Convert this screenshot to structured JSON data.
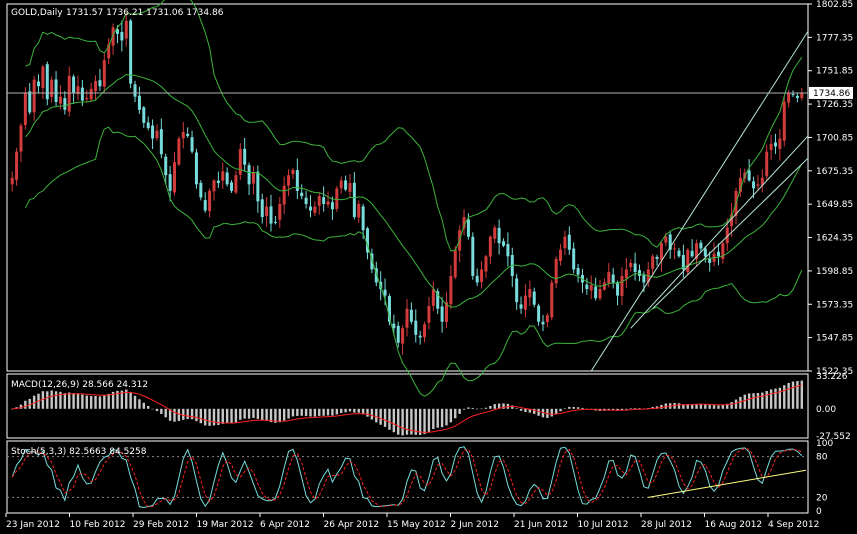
{
  "window": {
    "symbol_title": "GOLD,Daily",
    "ohlc_readout": "1731.57 1736.21 1731.06 1734.86"
  },
  "indicators": {
    "macd_label": "MACD(12,26,9) 28.566 24.312",
    "stoch_label": "Stoch(5,3,3) 82.5663 84.5258"
  },
  "colors": {
    "background": "#000000",
    "frame": "#ffffff",
    "bull_candle": "#d23c3c",
    "bear_candle": "#78dcdc",
    "bollinger": "#3cb43c",
    "trendline": "#b8e6d8",
    "macd_hist": "#c8c8c8",
    "macd_signal": "#ff2020",
    "stoch_main": "#78dcdc",
    "stoch_signal": "#ff2020",
    "stoch_trend": "#ffff80",
    "price_box": "#ffffff"
  },
  "chart_data": [
    {
      "type": "candlestick",
      "title": "GOLD,Daily",
      "y_ticks": [
        "1802.85",
        "1777.35",
        "1751.85",
        "1726.35",
        "1700.85",
        "1675.35",
        "1649.85",
        "1624.35",
        "1598.85",
        "1573.35",
        "1547.85",
        "1522.35"
      ],
      "ylim": [
        1522.35,
        1802.85
      ],
      "x_ticks": [
        "23 Jan 2012",
        "10 Feb 2012",
        "29 Feb 2012",
        "19 Mar 2012",
        "6 Apr 2012",
        "26 Apr 2012",
        "15 May 2012",
        "2 Jun 2012",
        "21 Jun 2012",
        "10 Jul 2012",
        "28 Jul 2012",
        "16 Aug 2012",
        "4 Sep 2012"
      ],
      "current_price": "1734.86",
      "close_series": [
        1670,
        1690,
        1710,
        1735,
        1720,
        1745,
        1740,
        1755,
        1730,
        1745,
        1728,
        1732,
        1722,
        1748,
        1735,
        1740,
        1729,
        1731,
        1738,
        1744,
        1740,
        1760,
        1772,
        1785,
        1780,
        1775,
        1790,
        1742,
        1732,
        1722,
        1712,
        1708,
        1700,
        1706,
        1688,
        1672,
        1660,
        1682,
        1700,
        1705,
        1702,
        1690,
        1665,
        1655,
        1645,
        1660,
        1668,
        1666,
        1675,
        1665,
        1660,
        1672,
        1692,
        1680,
        1665,
        1674,
        1652,
        1640,
        1648,
        1635,
        1636,
        1650,
        1664,
        1672,
        1676,
        1660,
        1656,
        1650,
        1645,
        1648,
        1656,
        1650,
        1652,
        1646,
        1662,
        1668,
        1661,
        1666,
        1640,
        1650,
        1630,
        1613,
        1600,
        1590,
        1585,
        1580,
        1560,
        1555,
        1544,
        1555,
        1570,
        1560,
        1550,
        1548,
        1558,
        1572,
        1585,
        1570,
        1560,
        1575,
        1595,
        1615,
        1630,
        1640,
        1625,
        1595,
        1590,
        1600,
        1610,
        1625,
        1632,
        1620,
        1618,
        1610,
        1595,
        1575,
        1570,
        1580,
        1585,
        1573,
        1560,
        1558,
        1565,
        1590,
        1608,
        1615,
        1625,
        1615,
        1600,
        1596,
        1590,
        1585,
        1588,
        1578,
        1585,
        1590,
        1598,
        1590,
        1580,
        1595,
        1600,
        1605,
        1598,
        1595,
        1590,
        1600,
        1610,
        1608,
        1620,
        1625,
        1615,
        1616,
        1610,
        1600,
        1615,
        1610,
        1620,
        1616,
        1610,
        1605,
        1612,
        1610,
        1620,
        1632,
        1642,
        1660,
        1670,
        1674,
        1668,
        1662,
        1665,
        1670,
        1690,
        1696,
        1694,
        1700,
        1728,
        1735,
        1734,
        1731,
        1735
      ],
      "bands_visible": true,
      "trend_channel_visible": true
    },
    {
      "type": "bar",
      "title": "MACD(12,26,9) 28.566 24.312",
      "y_ticks": [
        "33.226",
        "0.00",
        "-27.552"
      ],
      "ylim": [
        -27.552,
        33.226
      ],
      "main_value": 28.566,
      "signal_value": 24.312
    },
    {
      "type": "line",
      "title": "Stoch(5,3,3) 82.5663 84.5258",
      "y_ticks": [
        "100",
        "80",
        "20",
        "0"
      ],
      "ylim": [
        0,
        100
      ],
      "main_value": 82.5663,
      "signal_value": 84.5258,
      "levels": [
        80,
        20
      ]
    }
  ]
}
